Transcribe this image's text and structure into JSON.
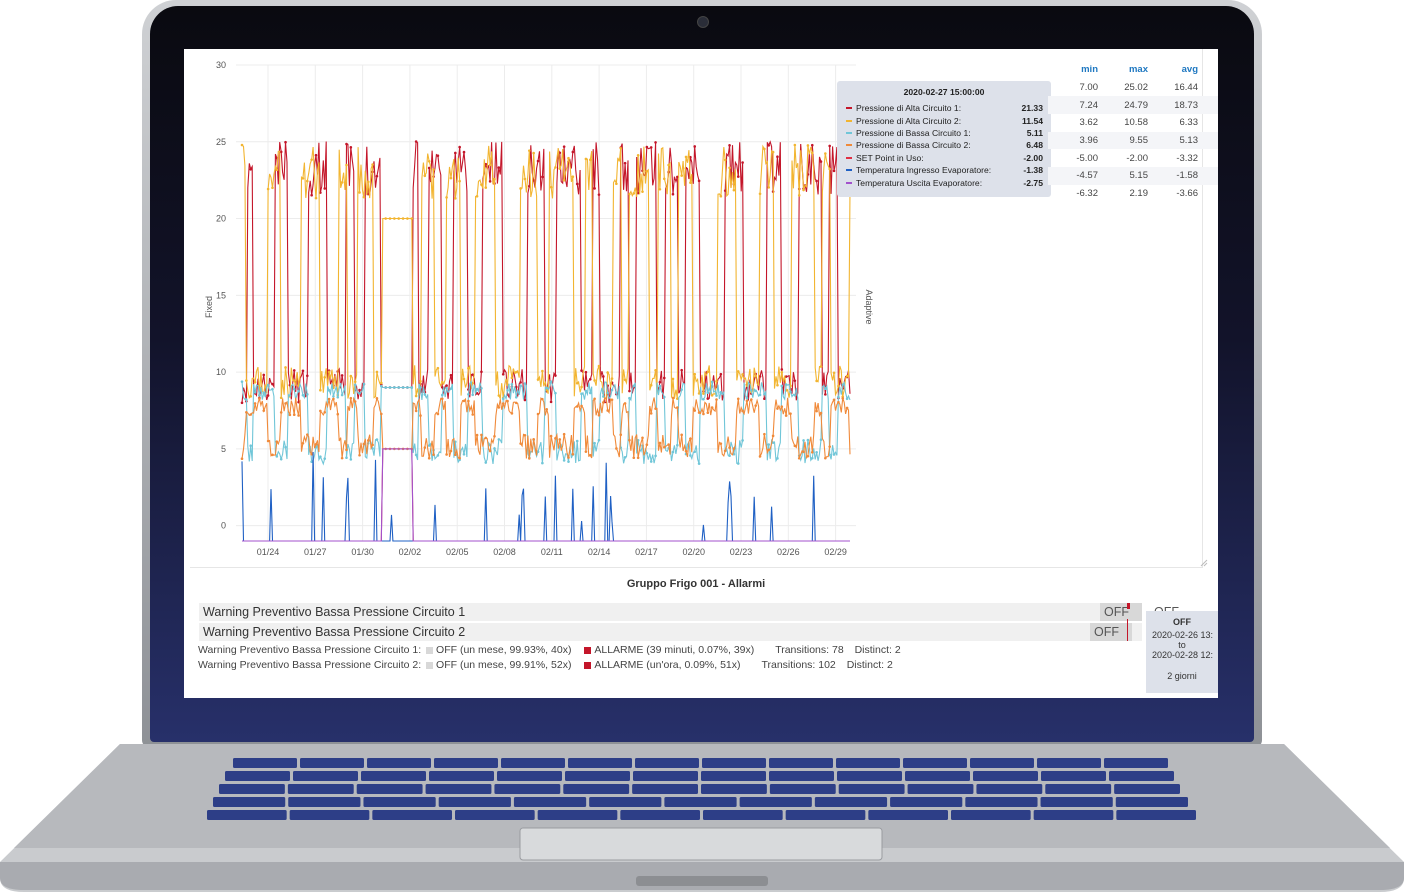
{
  "chart": {
    "y_axis_left_label": "Fixed",
    "y_axis_right_label": "Adaptive",
    "tooltip": {
      "timestamp": "2020-02-27 15:00:00",
      "rows": [
        {
          "name": "Pressione di Alta Circuito 1:",
          "value": "21.33",
          "color": "#c4162a"
        },
        {
          "name": "Pressione di Alta Circuito 2:",
          "value": "11.54",
          "color": "#f2b531"
        },
        {
          "name": "Pressione di Bassa Circuito 1:",
          "value": "5.11",
          "color": "#70c6d8"
        },
        {
          "name": "Pressione di Bassa Circuito 2:",
          "value": "6.48",
          "color": "#f08a3a"
        },
        {
          "name": "SET Point in Uso:",
          "value": "-2.00",
          "color": "#e02f44"
        },
        {
          "name": "Temperatura Ingresso Evaporatore:",
          "value": "-1.38",
          "color": "#1f60c4"
        },
        {
          "name": "Temperatura Uscita Evaporatore:",
          "value": "-2.75",
          "color": "#a352cc"
        }
      ]
    },
    "stats": {
      "headers": [
        "min",
        "max",
        "avg"
      ],
      "rows": [
        [
          "7.00",
          "25.02",
          "16.44"
        ],
        [
          "7.24",
          "24.79",
          "18.73"
        ],
        [
          "3.62",
          "10.58",
          "6.33"
        ],
        [
          "3.96",
          "9.55",
          "5.13"
        ],
        [
          "-5.00",
          "-2.00",
          "-3.32"
        ],
        [
          "-4.57",
          "5.15",
          "-1.58"
        ],
        [
          "-6.32",
          "2.19",
          "-3.66"
        ]
      ]
    }
  },
  "chart_data": {
    "type": "line",
    "ylim": [
      -1,
      30
    ],
    "y_ticks": [
      0,
      5,
      10,
      15,
      20,
      25,
      30
    ],
    "x_ticks": [
      "01/24",
      "01/27",
      "01/30",
      "02/02",
      "02/05",
      "02/08",
      "02/11",
      "02/14",
      "02/17",
      "02/20",
      "02/23",
      "02/26",
      "02/29"
    ],
    "ylabel": "Fixed",
    "y2label": "Adaptive",
    "x_start_label": "01/23",
    "series": [
      {
        "name": "Pressione di Alta Circuito 1",
        "color": "#c4162a",
        "mode": "high",
        "min": 7.0,
        "max": 25.02,
        "avg": 16.44,
        "seed": 11
      },
      {
        "name": "Pressione di Alta Circuito 2",
        "color": "#f2b531",
        "mode": "high",
        "min": 7.24,
        "max": 24.79,
        "avg": 18.73,
        "seed": 23
      },
      {
        "name": "Pressione di Bassa Circuito 1",
        "color": "#70c6d8",
        "mode": "low",
        "min": 3.62,
        "max": 10.58,
        "avg": 6.33,
        "seed": 37
      },
      {
        "name": "Pressione di Bassa Circuito 2",
        "color": "#f08a3a",
        "mode": "low",
        "min": 3.96,
        "max": 9.55,
        "avg": 5.13,
        "seed": 41
      },
      {
        "name": "SET Point in Uso",
        "color": "#e02f44",
        "mode": "flat",
        "min": -5.0,
        "max": -2.0,
        "avg": -3.32,
        "seed": 53
      },
      {
        "name": "Temperatura Ingresso Evaporatore",
        "color": "#1f60c4",
        "mode": "spike",
        "min": -4.57,
        "max": 5.15,
        "avg": -1.58,
        "seed": 67
      },
      {
        "name": "Temperatura Uscita Evaporatore",
        "color": "#a352cc",
        "mode": "flat",
        "min": -6.32,
        "max": 2.19,
        "avg": -3.66,
        "seed": 71
      }
    ]
  },
  "alarms": {
    "title": "Gruppo Frigo 001 - Allarmi",
    "rows": [
      {
        "label": "Warning Preventivo Bassa Pressione Circuito 1",
        "state": "OFF",
        "state2": "OFF"
      },
      {
        "label": "Warning Preventivo Bassa Pressione Circuito 2",
        "state": "OFF"
      }
    ],
    "stats": [
      {
        "label": "Warning Preventivo Bassa Pressione Circuito 1:",
        "off_text": "OFF (un mese, 99.93%, 40x)",
        "alarm_text": "ALLARME (39 minuti, 0.07%, 39x)",
        "transitions": "Transitions: 78",
        "distinct": "Distinct: 2"
      },
      {
        "label": "Warning Preventivo Bassa Pressione Circuito 2:",
        "off_text": "OFF (un mese, 99.91%, 52x)",
        "alarm_text": "ALLARME (un'ora, 0.09%, 51x)",
        "transitions": "Transitions: 102",
        "distinct": "Distinct: 2"
      }
    ],
    "off_color": "#d8d8d8",
    "alarm_color": "#c4162a",
    "tooltip": {
      "state": "OFF",
      "from": "2020-02-26 13:",
      "to_word": "to",
      "to": "2020-02-28 12:",
      "duration": "2 giorni"
    }
  }
}
